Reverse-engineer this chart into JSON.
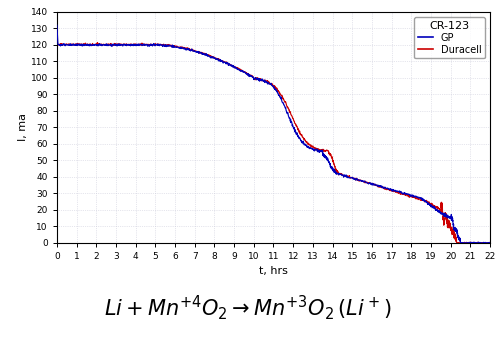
{
  "title": "",
  "xlabel": "t, hrs",
  "ylabel": "I, ma",
  "xlim": [
    0,
    22
  ],
  "ylim": [
    0,
    140
  ],
  "xticks": [
    0,
    1,
    2,
    3,
    4,
    5,
    6,
    7,
    8,
    9,
    10,
    11,
    12,
    13,
    14,
    15,
    16,
    17,
    18,
    19,
    20,
    21,
    22
  ],
  "yticks": [
    0,
    10,
    20,
    30,
    40,
    50,
    60,
    70,
    80,
    90,
    100,
    110,
    120,
    130,
    140
  ],
  "legend_title": "CR-123",
  "legend_entries": [
    "GP",
    "Duracell"
  ],
  "line_colors": [
    "#0000bb",
    "#cc0000"
  ],
  "background_color": "#ffffff",
  "grid_color": "#c8c8d8",
  "formula": "$Li  +  Mn^{+4}O_2 \\rightarrow  Mn^{+3}O_2\\,(Li^+)$",
  "formula_fontsize": 15
}
